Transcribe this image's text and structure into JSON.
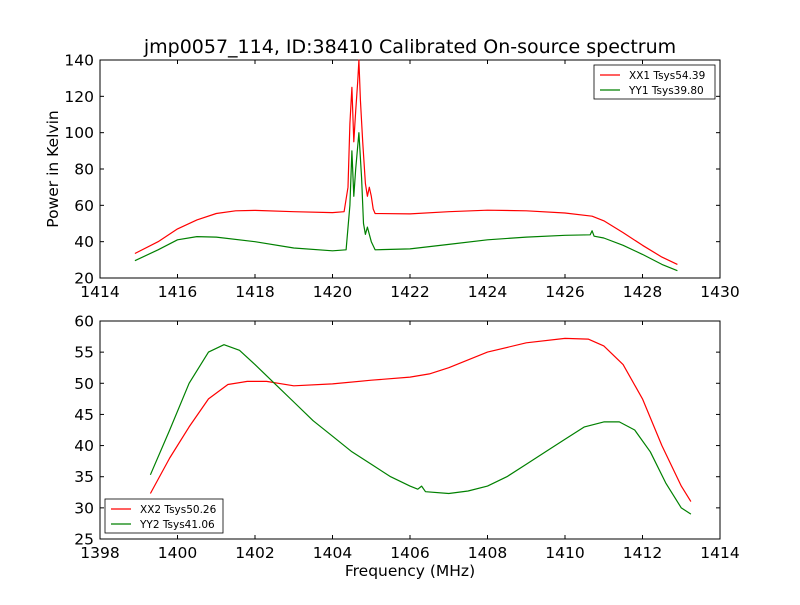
{
  "chart_data": [
    {
      "type": "line",
      "title": "jmp0057_114, ID:38410 Calibrated On-source spectrum",
      "xlabel": "",
      "ylabel": "Power in Kelvin",
      "xlim": [
        1414,
        1430
      ],
      "ylim": [
        20,
        140
      ],
      "xticks": [
        "1414",
        "1416",
        "1418",
        "1420",
        "1422",
        "1424",
        "1426",
        "1428",
        "1430"
      ],
      "yticks": [
        "20",
        "40",
        "60",
        "80",
        "100",
        "120",
        "140"
      ],
      "legend_position": "top-right",
      "series": [
        {
          "name": "XX1 Tsys54.39",
          "color": "#ff0000",
          "points": [
            [
              1414.9,
              33.5
            ],
            [
              1415.5,
              40
            ],
            [
              1416,
              47
            ],
            [
              1416.5,
              52
            ],
            [
              1417,
              55.5
            ],
            [
              1417.5,
              57
            ],
            [
              1418,
              57.2
            ],
            [
              1419,
              56.5
            ],
            [
              1420,
              56
            ],
            [
              1420.3,
              56.5
            ],
            [
              1420.4,
              70
            ],
            [
              1420.45,
              105
            ],
            [
              1420.5,
              125
            ],
            [
              1420.55,
              95
            ],
            [
              1420.6,
              112
            ],
            [
              1420.65,
              128
            ],
            [
              1420.68,
              140
            ],
            [
              1420.72,
              118
            ],
            [
              1420.78,
              95
            ],
            [
              1420.85,
              72
            ],
            [
              1420.9,
              65
            ],
            [
              1420.95,
              70
            ],
            [
              1421,
              65
            ],
            [
              1421.05,
              58
            ],
            [
              1421.1,
              55.5
            ],
            [
              1422,
              55.3
            ],
            [
              1423,
              56.5
            ],
            [
              1424,
              57.3
            ],
            [
              1425,
              57
            ],
            [
              1426,
              55.8
            ],
            [
              1426.7,
              54
            ],
            [
              1427,
              51.5
            ],
            [
              1427.5,
              45
            ],
            [
              1428,
              38
            ],
            [
              1428.5,
              31.5
            ],
            [
              1428.9,
              27.5
            ]
          ]
        },
        {
          "name": "YY1 Tsys39.80",
          "color": "#008000",
          "points": [
            [
              1414.9,
              29.5
            ],
            [
              1415.5,
              35.5
            ],
            [
              1416,
              41
            ],
            [
              1416.5,
              42.8
            ],
            [
              1417,
              42.5
            ],
            [
              1418,
              40
            ],
            [
              1419,
              36.5
            ],
            [
              1420,
              35
            ],
            [
              1420.35,
              35.5
            ],
            [
              1420.45,
              60
            ],
            [
              1420.5,
              90
            ],
            [
              1420.55,
              65
            ],
            [
              1420.6,
              80
            ],
            [
              1420.68,
              100
            ],
            [
              1420.75,
              75
            ],
            [
              1420.8,
              50
            ],
            [
              1420.85,
              44
            ],
            [
              1420.9,
              48
            ],
            [
              1421,
              40
            ],
            [
              1421.1,
              35.5
            ],
            [
              1422,
              36
            ],
            [
              1423,
              38.5
            ],
            [
              1424,
              41
            ],
            [
              1425,
              42.5
            ],
            [
              1426,
              43.5
            ],
            [
              1426.65,
              43.8
            ],
            [
              1426.7,
              46
            ],
            [
              1426.75,
              43
            ],
            [
              1427,
              42
            ],
            [
              1427.5,
              38
            ],
            [
              1428,
              33
            ],
            [
              1428.5,
              27.5
            ],
            [
              1428.9,
              24
            ]
          ]
        }
      ]
    },
    {
      "type": "line",
      "title": "",
      "xlabel": "Frequency (MHz)",
      "ylabel": "",
      "xlim": [
        1398,
        1414
      ],
      "ylim": [
        25,
        60
      ],
      "xticks": [
        "1398",
        "1400",
        "1402",
        "1404",
        "1406",
        "1408",
        "1410",
        "1412",
        "1414"
      ],
      "yticks": [
        "25",
        "30",
        "35",
        "40",
        "45",
        "50",
        "55",
        "60"
      ],
      "legend_position": "bottom-left",
      "series": [
        {
          "name": "XX2 Tsys50.26",
          "color": "#ff0000",
          "points": [
            [
              1399.3,
              32.3
            ],
            [
              1399.8,
              38
            ],
            [
              1400.3,
              43
            ],
            [
              1400.8,
              47.5
            ],
            [
              1401.3,
              49.8
            ],
            [
              1401.8,
              50.3
            ],
            [
              1402.3,
              50.3
            ],
            [
              1403,
              49.6
            ],
            [
              1404,
              49.9
            ],
            [
              1405,
              50.5
            ],
            [
              1406,
              51
            ],
            [
              1406.5,
              51.5
            ],
            [
              1407,
              52.5
            ],
            [
              1408,
              55
            ],
            [
              1409,
              56.5
            ],
            [
              1410,
              57.2
            ],
            [
              1410.6,
              57.1
            ],
            [
              1411,
              56
            ],
            [
              1411.5,
              53
            ],
            [
              1412,
              47.5
            ],
            [
              1412.5,
              40
            ],
            [
              1413,
              33.5
            ],
            [
              1413.25,
              31
            ]
          ]
        },
        {
          "name": "YY2 Tsys41.06",
          "color": "#008000",
          "points": [
            [
              1399.3,
              35.3
            ],
            [
              1399.8,
              42.5
            ],
            [
              1400.3,
              50
            ],
            [
              1400.8,
              55
            ],
            [
              1401.2,
              56.2
            ],
            [
              1401.6,
              55.3
            ],
            [
              1402,
              53
            ],
            [
              1402.5,
              50
            ],
            [
              1403,
              47
            ],
            [
              1403.5,
              44
            ],
            [
              1404,
              41.5
            ],
            [
              1404.5,
              39
            ],
            [
              1405,
              37
            ],
            [
              1405.5,
              35
            ],
            [
              1406,
              33.5
            ],
            [
              1406.2,
              33
            ],
            [
              1406.3,
              33.5
            ],
            [
              1406.4,
              32.6
            ],
            [
              1407,
              32.3
            ],
            [
              1407.5,
              32.7
            ],
            [
              1408,
              33.5
            ],
            [
              1408.5,
              35
            ],
            [
              1409,
              37
            ],
            [
              1409.5,
              39
            ],
            [
              1410,
              41
            ],
            [
              1410.5,
              43
            ],
            [
              1411,
              43.8
            ],
            [
              1411.4,
              43.8
            ],
            [
              1411.8,
              42.5
            ],
            [
              1412.2,
              39
            ],
            [
              1412.6,
              34
            ],
            [
              1413,
              30
            ],
            [
              1413.25,
              29
            ]
          ]
        }
      ]
    }
  ]
}
